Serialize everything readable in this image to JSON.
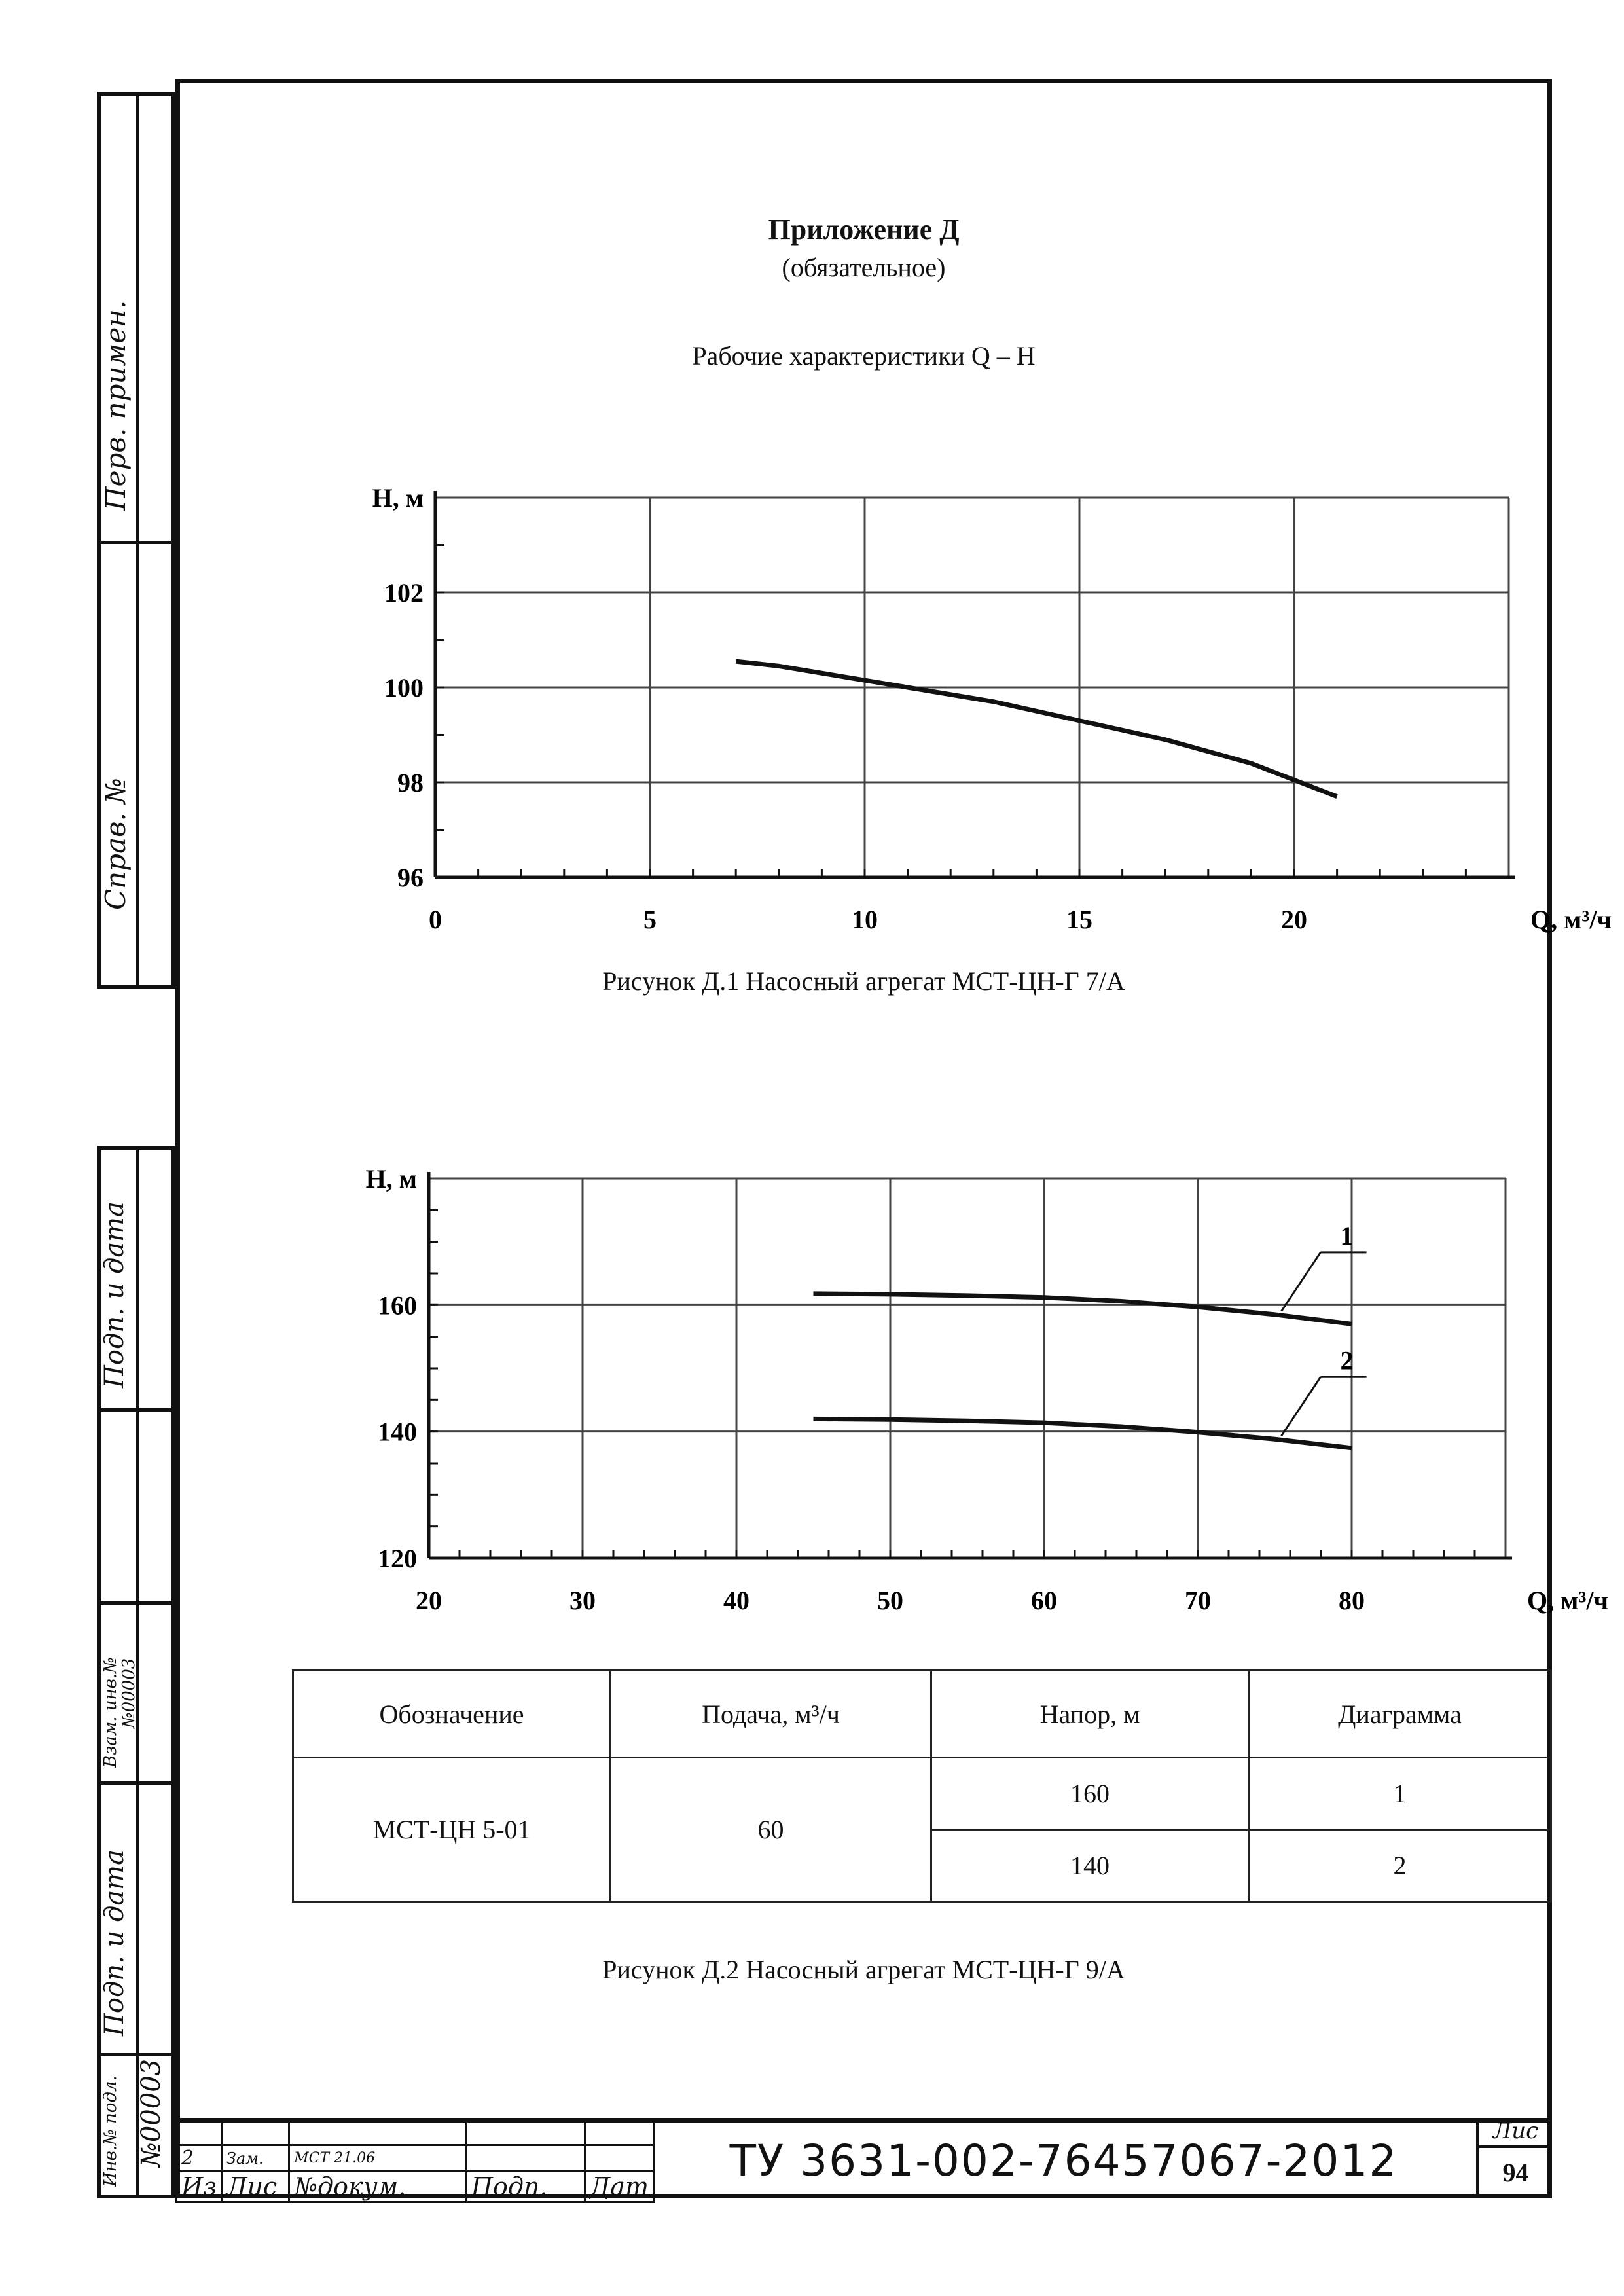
{
  "header": {
    "title": "Приложение Д",
    "subtitle": "(обязательное)",
    "heading": "Рабочие характеристики Q – H"
  },
  "sidebar": {
    "perv_primen": "Перв. примен.",
    "sprav_no": "Справ. №",
    "podp_data_1": "Подп. и дата",
    "vzam_inv": "Взам. инв.№",
    "vzam_inv_value": "№00003",
    "podp_data_2": "Подп. и дата",
    "inv_podl": "Инв.№ подл.",
    "inv_podl_value": "№00003"
  },
  "figure1": {
    "caption": "Рисунок Д.1 Насосный агрегат МСТ-ЦН-Г 7/А"
  },
  "figure2": {
    "caption": "Рисунок Д.2 Насосный агрегат МСТ-ЦН-Г 9/А",
    "curve_labels": [
      "1",
      "2"
    ]
  },
  "chart_data": [
    {
      "type": "line",
      "xlabel": "Q, м³/ч",
      "ylabel": "H, м",
      "xlim": [
        0,
        25
      ],
      "ylim": [
        96,
        104
      ],
      "xticks": [
        "0",
        "5",
        "10",
        "15",
        "20"
      ],
      "yticks": [
        "96",
        "98",
        "100",
        "102"
      ],
      "grid": true,
      "series": [
        {
          "x": [
            7,
            8,
            9,
            10,
            11,
            12,
            13,
            14,
            15,
            16,
            17,
            18,
            19,
            20,
            21
          ],
          "values": [
            100.55,
            100.45,
            100.3,
            100.15,
            100.0,
            99.85,
            99.7,
            99.5,
            99.3,
            99.1,
            98.9,
            98.65,
            98.4,
            98.05,
            97.7
          ]
        }
      ]
    },
    {
      "type": "line",
      "xlabel": "Q, м³/ч",
      "ylabel": "H, м",
      "xlim": [
        20,
        90
      ],
      "ylim": [
        120,
        180
      ],
      "xticks": [
        "20",
        "30",
        "40",
        "50",
        "60",
        "70",
        "80"
      ],
      "yticks": [
        "120",
        "140",
        "160"
      ],
      "grid": true,
      "series": [
        {
          "name": "1",
          "x": [
            45,
            50,
            55,
            60,
            65,
            70,
            75,
            80
          ],
          "values": [
            161.8,
            161.7,
            161.5,
            161.2,
            160.6,
            159.7,
            158.5,
            157.0
          ]
        },
        {
          "name": "2",
          "x": [
            45,
            50,
            55,
            60,
            65,
            70,
            75,
            80
          ],
          "values": [
            142.0,
            141.9,
            141.7,
            141.4,
            140.8,
            139.9,
            138.8,
            137.4
          ]
        }
      ]
    }
  ],
  "table": {
    "headers": [
      "Обозначение",
      "Подача, м³/ч",
      "Напор, м",
      "Диаграмма"
    ],
    "designation": "МСТ-ЦН 5-01",
    "flow": "60",
    "rows": [
      {
        "head": "160",
        "diagram": "1"
      },
      {
        "head": "140",
        "diagram": "2"
      }
    ]
  },
  "title_block": {
    "doc_code": "ТУ 3631-002-76457067-2012",
    "sheet_label": "Лис",
    "sheet_number": "94",
    "change_no": "2",
    "change_type": "Зам.",
    "change_doc": "МСТ 21.06",
    "col_iz": "Из",
    "col_lis": "Лис",
    "col_doc": "№докум.",
    "col_podp": "Подп.",
    "col_dat": "Дат"
  }
}
